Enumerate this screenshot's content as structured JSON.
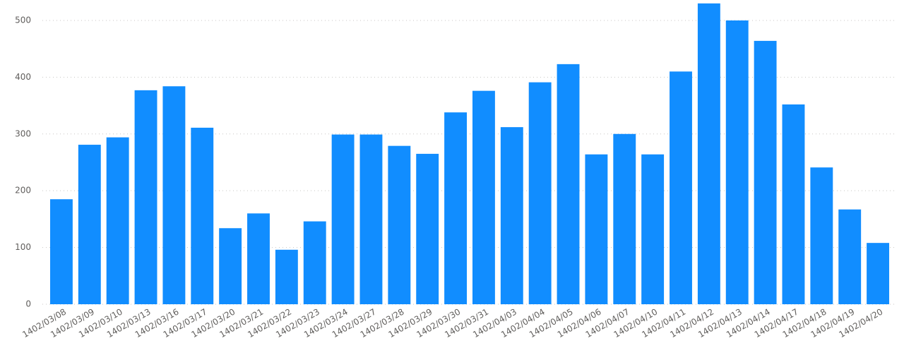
{
  "chart_data": {
    "type": "bar",
    "categories": [
      "1402/03/08",
      "1402/03/09",
      "1402/03/10",
      "1402/03/13",
      "1402/03/16",
      "1402/03/17",
      "1402/03/20",
      "1402/03/21",
      "1402/03/22",
      "1402/03/23",
      "1402/03/24",
      "1402/03/27",
      "1402/03/28",
      "1402/03/29",
      "1402/03/30",
      "1402/03/31",
      "1402/04/03",
      "1402/04/04",
      "1402/04/05",
      "1402/04/06",
      "1402/04/07",
      "1402/04/10",
      "1402/04/11",
      "1402/04/12",
      "1402/04/13",
      "1402/04/14",
      "1402/04/17",
      "1402/04/18",
      "1402/04/19",
      "1402/04/20"
    ],
    "values": [
      185,
      281,
      294,
      377,
      384,
      311,
      134,
      160,
      96,
      146,
      299,
      299,
      279,
      265,
      338,
      376,
      312,
      391,
      423,
      264,
      300,
      264,
      410,
      530,
      500,
      464,
      352,
      241,
      167,
      108
    ],
    "color": "#118dff",
    "ylim": [
      0,
      536
    ],
    "yticks": [
      0,
      100,
      200,
      300,
      400,
      500
    ],
    "grid": true
  }
}
